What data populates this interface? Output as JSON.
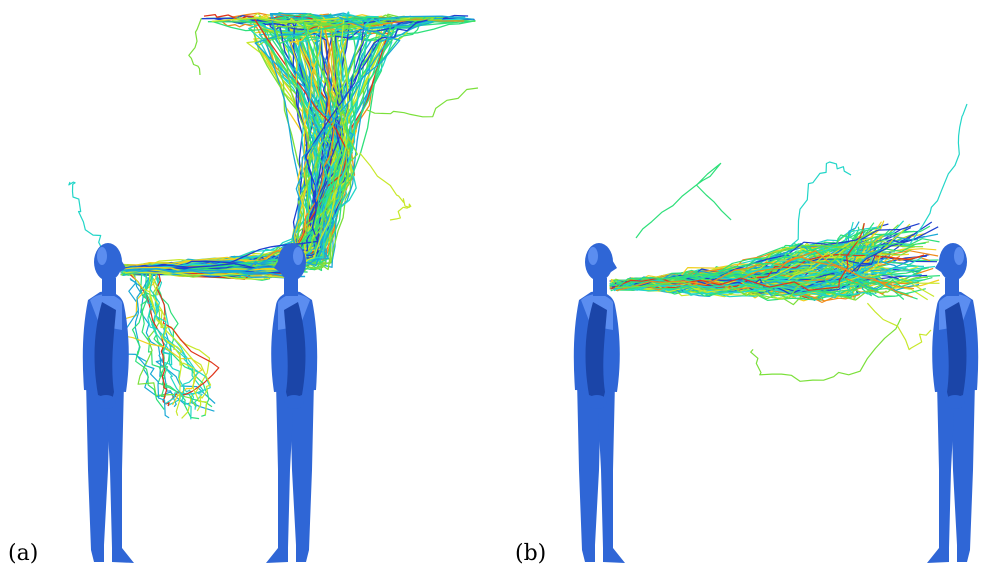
{
  "figure": {
    "panels": [
      {
        "label": "(a)"
      },
      {
        "label": "(b)"
      }
    ],
    "colors": {
      "mannequin": "#2f66d6",
      "mannequin_dark": "#1b45a8",
      "mannequin_light": "#5b8df0",
      "trajectory_palette": [
        "#1e3fd0",
        "#19a9d6",
        "#22d6c8",
        "#2ee07a",
        "#7be03a",
        "#c8e82a",
        "#f0d020",
        "#f08a1a",
        "#e0341a"
      ]
    }
  }
}
